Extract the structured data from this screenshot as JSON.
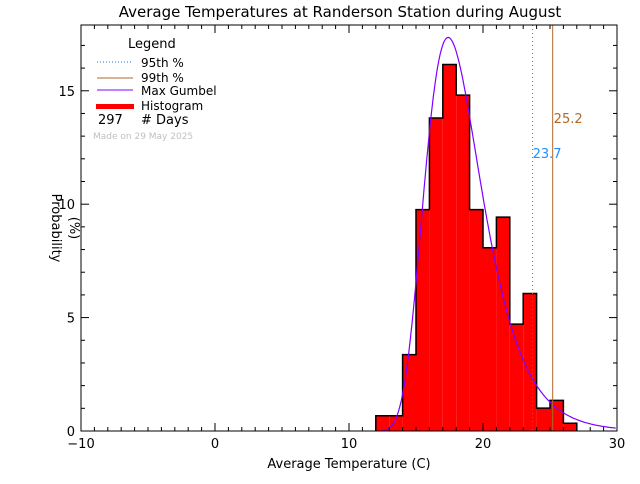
{
  "chart_data": {
    "type": "bar",
    "title": "Average Temperatures at Randerson Station during August",
    "xlabel": "Average Temperature (C)",
    "ylabel": "Probability\n(%)",
    "ylabel_lines": [
      "Probability",
      "(%)"
    ],
    "xlim": [
      -10,
      30
    ],
    "ylim": [
      0,
      17.9
    ],
    "xticks": [
      -10,
      0,
      10,
      20,
      30
    ],
    "xtick_labels": [
      "−10",
      "0",
      "10",
      "20",
      "30"
    ],
    "yticks": [
      0,
      5,
      10,
      15
    ],
    "ytick_labels": [
      "0",
      "5",
      "10",
      "15"
    ],
    "grid": false,
    "legend_position": "top-left",
    "histogram": {
      "bin_edges": [
        12,
        13,
        14,
        15,
        16,
        17,
        18,
        19,
        20,
        21,
        22,
        23,
        24,
        25,
        26,
        27
      ],
      "values": [
        0.67,
        0.67,
        3.37,
        9.76,
        13.8,
        16.16,
        14.81,
        9.76,
        8.08,
        9.43,
        4.71,
        6.06,
        1.01,
        1.35,
        0.34
      ]
    },
    "gumbel": {
      "mu": 17.4,
      "beta": 2.12
    },
    "p95": {
      "value": 23.7,
      "label": "23.7"
    },
    "p99": {
      "value": 25.2,
      "label": "25.2"
    },
    "legend": {
      "title": "Legend",
      "items": [
        "95th %",
        "99th %",
        "Max Gumbel",
        "Histogram"
      ],
      "days_count": "297",
      "days_label": "# Days",
      "made_on": "Made on 29 May 2025"
    },
    "colors": {
      "histogram": "#ff0000",
      "gumbel": "#8000ff",
      "p95_legend": "#1e78d8",
      "p95_label": "#1e90ff",
      "p99": "#b0682a",
      "made_on": "#c0c0c0"
    }
  }
}
